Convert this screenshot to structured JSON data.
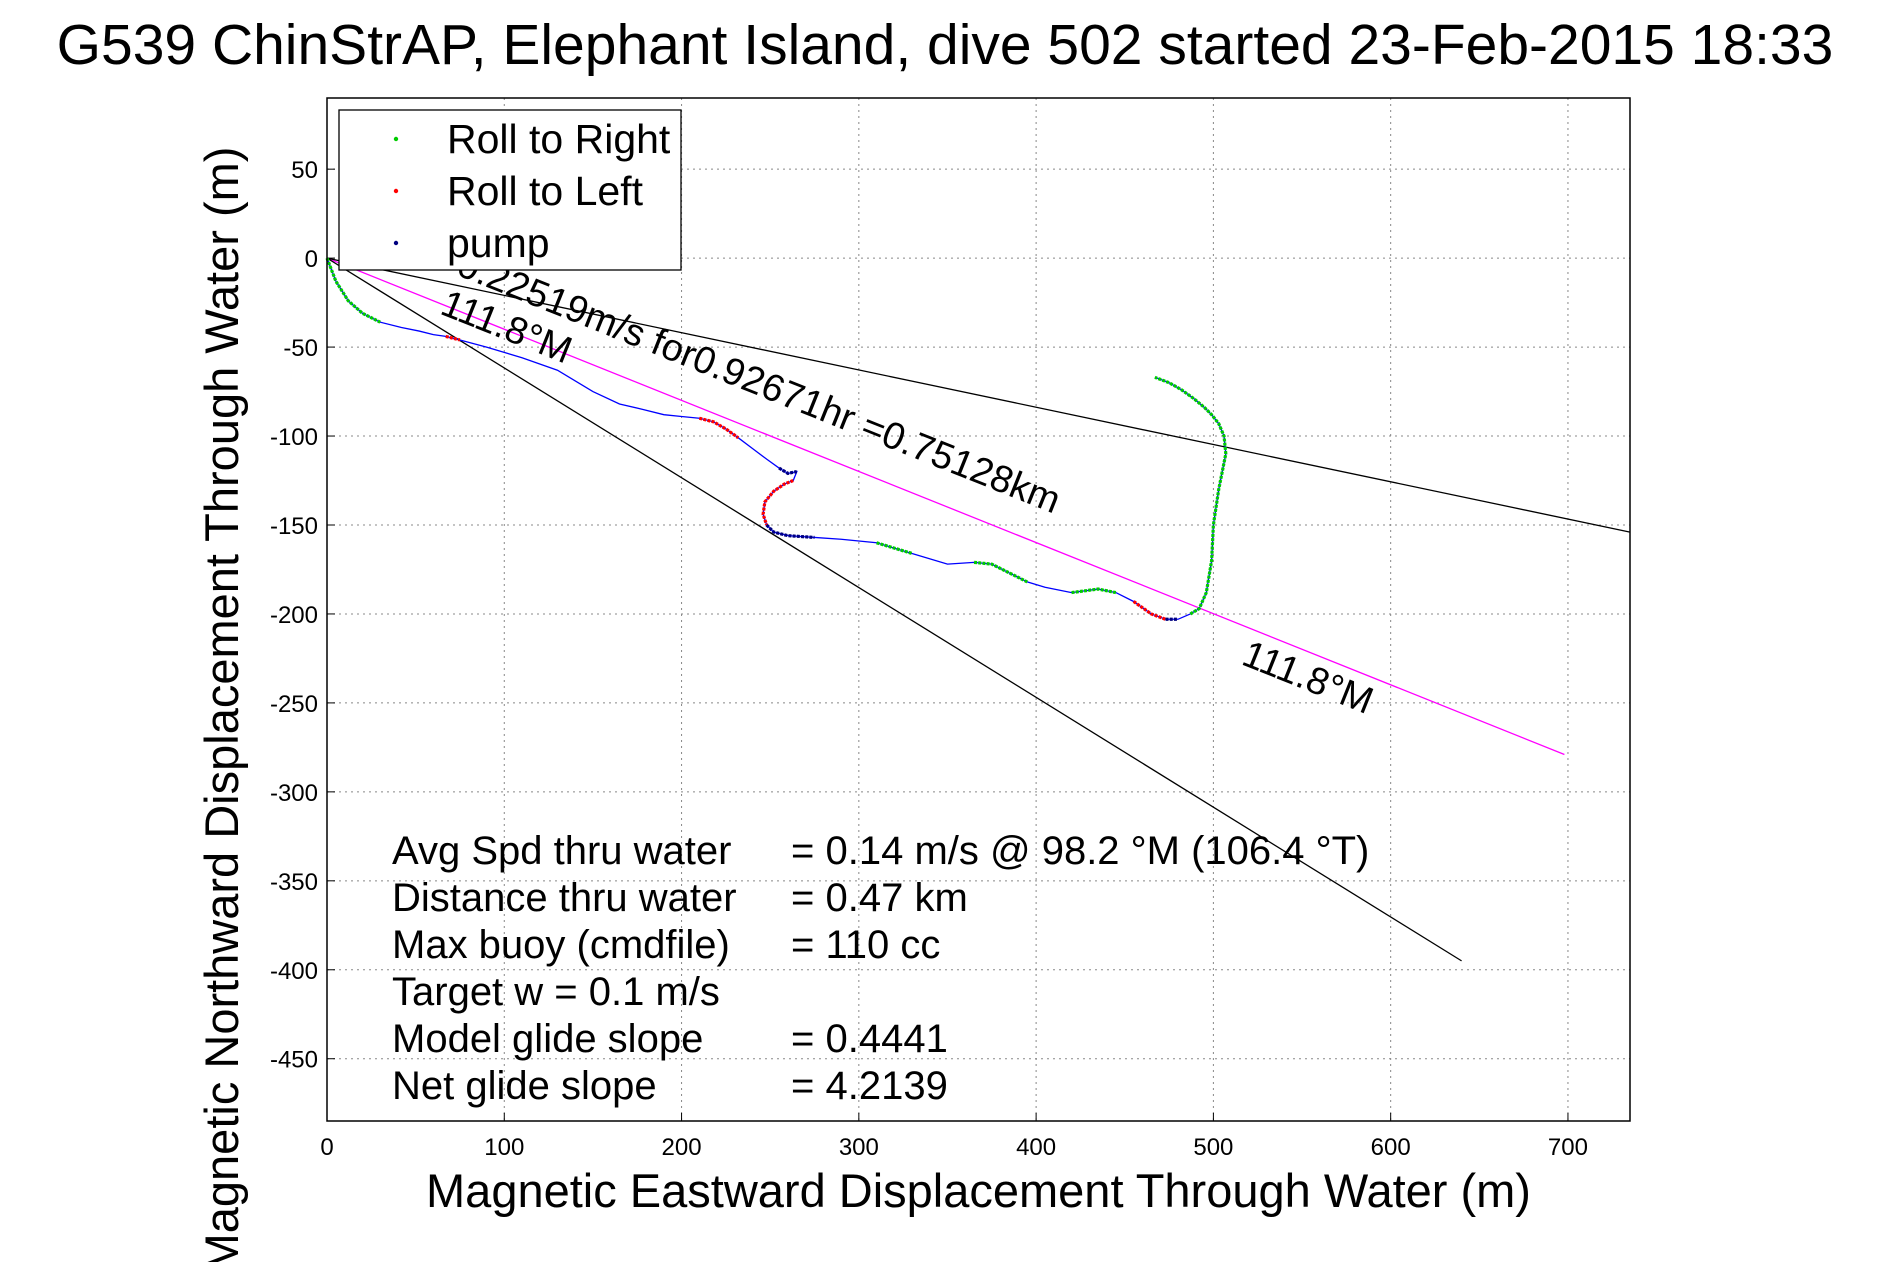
{
  "chart_data": {
    "type": "scatter",
    "title": "G539 ChinStrAP, Elephant Island, dive 502 started 23-Feb-2015 18:33",
    "xlabel": "Magnetic Eastward Displacement Through Water (m)",
    "ylabel": "Magnetic Northward Displacement Through Water (m)",
    "xlim": [
      0,
      735
    ],
    "ylim": [
      -485,
      90
    ],
    "x_ticks": [
      "0",
      "100",
      "200",
      "300",
      "400",
      "500",
      "600",
      "700"
    ],
    "y_ticks": [
      "50",
      "0",
      "-50",
      "-100",
      "-150",
      "-200",
      "-250",
      "-300",
      "-350",
      "-400",
      "-450"
    ],
    "grid": "on",
    "legend_placement": "top-left",
    "legend": [
      "Roll to Right",
      "Roll to Left",
      "pump"
    ],
    "colors": {
      "roll_right": "#00cc00",
      "roll_left": "#ff0000",
      "pump": "#000080",
      "track": "#0000ff",
      "heading_line": "#ff00ff",
      "ref_lines": "#000000"
    },
    "track": {
      "x": [
        0,
        5,
        12,
        20,
        30,
        42,
        52,
        60,
        67,
        75,
        90,
        110,
        130,
        150,
        165,
        178,
        190,
        200,
        210,
        218,
        225,
        232,
        240,
        248,
        255,
        260,
        265,
        263,
        258,
        252,
        247,
        246,
        248,
        252,
        260,
        275,
        290,
        310,
        330,
        350,
        365,
        375,
        385,
        395,
        405,
        420,
        435,
        445,
        455,
        465,
        473,
        480,
        487,
        492,
        496,
        499,
        500,
        503,
        505,
        507,
        506,
        503,
        499,
        495,
        489,
        482,
        475,
        467
      ],
      "y": [
        0,
        -13,
        -24,
        -31,
        -36,
        -39,
        -41,
        -43,
        -44,
        -46,
        -50,
        -56,
        -63,
        -75,
        -82,
        -85,
        -88,
        -89,
        -90,
        -92,
        -96,
        -101,
        -107,
        -113,
        -118,
        -121,
        -120,
        -125,
        -127,
        -131,
        -137,
        -144,
        -150,
        -154,
        -156,
        -157,
        -158,
        -160,
        -166,
        -172,
        -171,
        -172,
        -177,
        -182,
        -185,
        -188,
        -186,
        -188,
        -193,
        -200,
        -203,
        -203,
        -200,
        -197,
        -188,
        -170,
        -150,
        -130,
        -120,
        -110,
        -100,
        -93,
        -88,
        -84,
        -79,
        -74,
        -70,
        -67
      ],
      "segments": [
        {
          "type": "roll_right",
          "from": 0,
          "to": 4
        },
        {
          "type": "roll_left",
          "from": 8,
          "to": 9
        },
        {
          "type": "roll_left",
          "from": 18,
          "to": 21
        },
        {
          "type": "pump",
          "from": 24,
          "to": 26
        },
        {
          "type": "roll_left",
          "from": 27,
          "to": 32
        },
        {
          "type": "pump",
          "from": 32,
          "to": 35
        },
        {
          "type": "roll_right",
          "from": 37,
          "to": 38
        },
        {
          "type": "roll_right",
          "from": 40,
          "to": 43
        },
        {
          "type": "roll_right",
          "from": 45,
          "to": 47
        },
        {
          "type": "roll_left",
          "from": 48,
          "to": 50
        },
        {
          "type": "pump",
          "from": 50,
          "to": 51
        },
        {
          "type": "roll_right",
          "from": 52,
          "to": 67
        }
      ]
    },
    "lines": [
      {
        "name": "heading",
        "color": "#ff00ff",
        "x": [
          0,
          698
        ],
        "y": [
          0,
          -279
        ]
      },
      {
        "name": "ref_upper",
        "color": "#000000",
        "x": [
          0,
          735
        ],
        "y": [
          0,
          -154
        ]
      },
      {
        "name": "ref_lower",
        "color": "#000000",
        "x": [
          0,
          640
        ],
        "y": [
          0,
          -395
        ]
      }
    ],
    "annotations": [
      {
        "text": "0.22519m/s for0.92671hr =0.75128km",
        "x": 72,
        "y": -9,
        "angle": 21.8
      },
      {
        "text": "111.8°M",
        "x": 63,
        "y": -31,
        "angle": 21.8
      },
      {
        "text": "111.8°M",
        "x": 515,
        "y": -228,
        "angle": 21.8
      }
    ],
    "stats": [
      {
        "label": "Avg Spd thru water",
        "value": "=  0.14 m/s @  98.2 °M (106.4 °T)"
      },
      {
        "label": "Distance thru water",
        "value": "=  0.47 km"
      },
      {
        "label": "Max buoy (cmdfile)",
        "value": "= 110 cc"
      },
      {
        "label": "Target w    = 0.1 m/s",
        "value": ""
      },
      {
        "label": "Model glide slope",
        "value": "= 0.4441"
      },
      {
        "label": "Net glide slope",
        "value": "= 4.2139"
      }
    ]
  }
}
